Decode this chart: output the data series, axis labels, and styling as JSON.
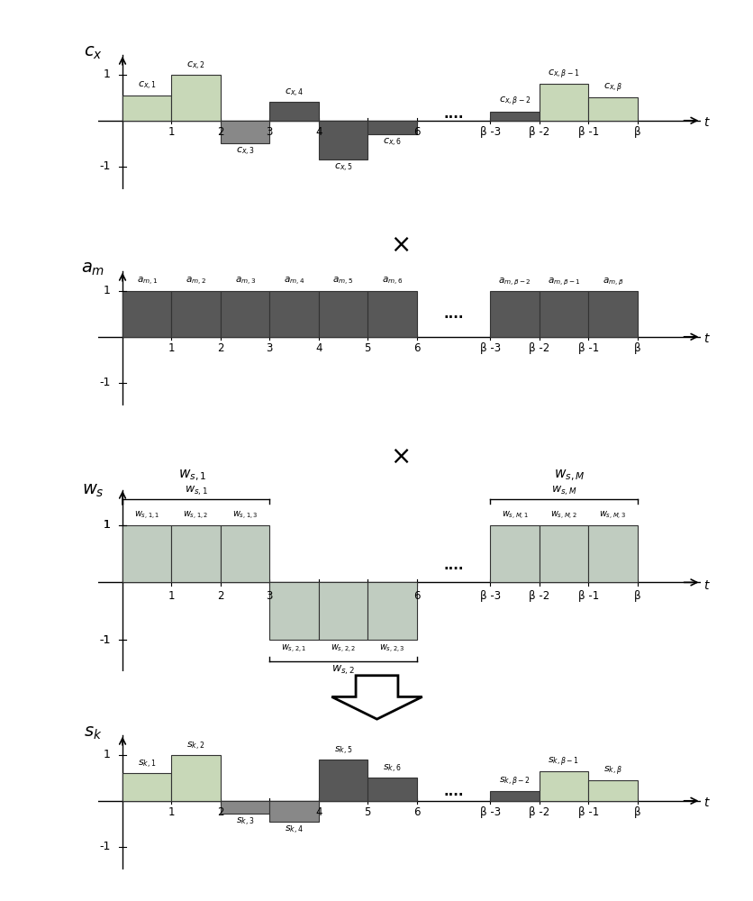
{
  "fig_width": 8.37,
  "fig_height": 10.0,
  "bg_color": "#ffffff",
  "light_green": "#c8d8b8",
  "dark_gray": "#585858",
  "medium_gray": "#888888",
  "light_gray": "#b8b8b8",
  "ws_color": "#b8c8b8",
  "ws_neg_color": "#c0c8b8",
  "cx_bars": [
    [
      0,
      1,
      0.55,
      "#c8d8b8"
    ],
    [
      1,
      2,
      1.0,
      "#c8d8b8"
    ],
    [
      2,
      3,
      -0.5,
      "#888888"
    ],
    [
      3,
      4,
      0.4,
      "#585858"
    ],
    [
      4,
      5,
      -0.85,
      "#585858"
    ],
    [
      5,
      6,
      -0.3,
      "#585858"
    ],
    [
      7.5,
      8.5,
      0.2,
      "#585858"
    ],
    [
      8.5,
      9.5,
      0.8,
      "#c8d8b8"
    ],
    [
      9.5,
      10.5,
      0.5,
      "#c8d8b8"
    ]
  ],
  "sk_bars": [
    [
      0,
      1,
      0.6,
      "#c8d8b8"
    ],
    [
      1,
      2,
      1.0,
      "#c8d8b8"
    ],
    [
      2,
      3,
      -0.28,
      "#888888"
    ],
    [
      3,
      4,
      -0.45,
      "#888888"
    ],
    [
      4,
      5,
      0.9,
      "#585858"
    ],
    [
      5,
      6,
      0.5,
      "#585858"
    ],
    [
      7.5,
      8.5,
      0.22,
      "#585858"
    ],
    [
      8.5,
      9.5,
      0.65,
      "#c8d8b8"
    ],
    [
      9.5,
      10.5,
      0.45,
      "#c8d8b8"
    ]
  ],
  "tick_positions": [
    1,
    2,
    3,
    4,
    5,
    6,
    7.5,
    8.5,
    9.5,
    10.5
  ],
  "tick_labels_cx": [
    "1",
    "2",
    "3",
    "4",
    "",
    "6",
    "β -3",
    "β -2",
    "β -1",
    "β"
  ],
  "tick_labels_am": [
    "1",
    "2",
    "3",
    "4",
    "5",
    "6",
    "β -3",
    "β -2",
    "β -1",
    "β"
  ],
  "tick_labels_ws": [
    "1",
    "2",
    "3",
    "",
    "",
    "6",
    "β -3",
    "β -2",
    "β -1",
    "β"
  ],
  "tick_labels_sk": [
    "1",
    "2",
    "",
    "4",
    "5",
    "6",
    "β -3",
    "β -2",
    "β -1",
    "β"
  ]
}
